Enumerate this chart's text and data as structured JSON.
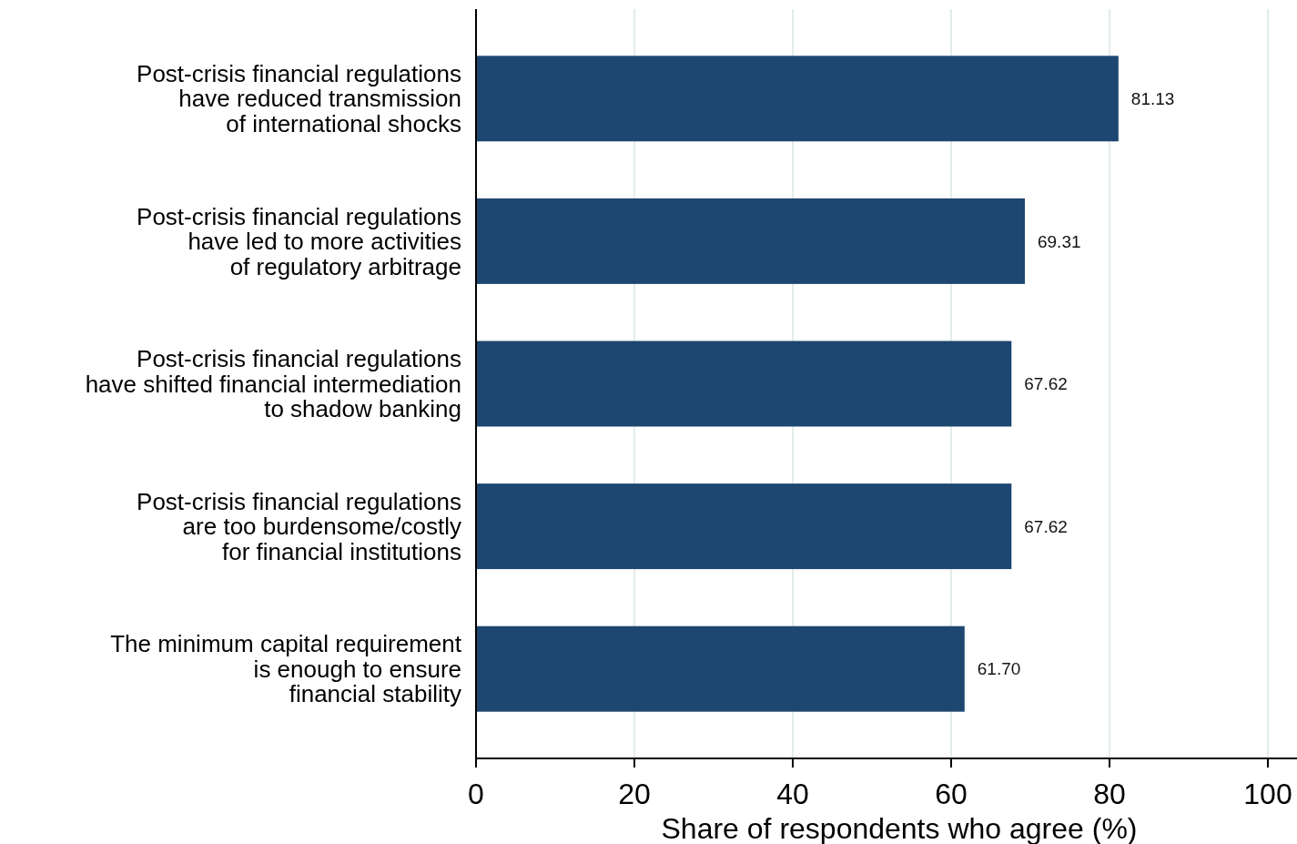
{
  "chart_data": {
    "type": "bar",
    "orientation": "horizontal",
    "categories": [
      "Post-crisis financial regulations\nhave reduced transmission\nof international shocks",
      "Post-crisis financial regulations\nhave led to more activities\nof regulatory arbitrage",
      "Post-crisis financial regulations\nhave shifted financial intermediation\nto shadow banking",
      "Post-crisis financial regulations\nare too burdensome/costly\nfor financial institutions",
      "The minimum capital requirement\nis enough to ensure\nfinancial stability"
    ],
    "values": [
      81.13,
      69.31,
      67.62,
      67.62,
      61.7
    ],
    "value_labels": [
      "81.13",
      "69.31",
      "67.62",
      "67.62",
      "61.70"
    ],
    "color": "#1d4670",
    "xlabel": "Share of respondents who agree (%)",
    "xlim": [
      0,
      100
    ],
    "xticks": [
      0,
      20,
      40,
      60,
      80,
      100
    ],
    "grid": "x"
  }
}
